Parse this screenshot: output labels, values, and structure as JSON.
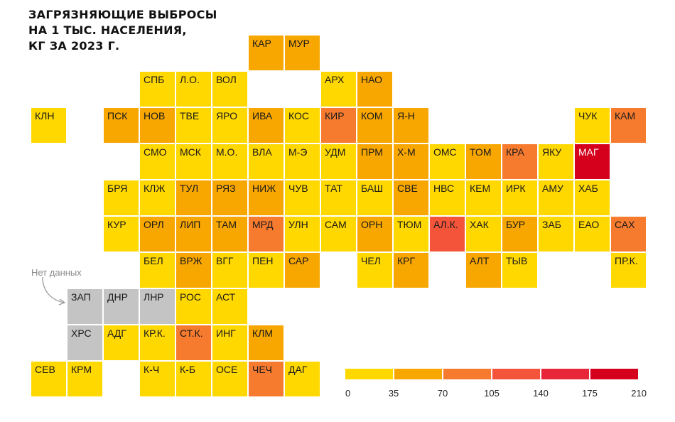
{
  "title": {
    "line1": "ЗАГРЯЗНЯЮЩИЕ ВЫБРОСЫ",
    "line2": "НА 1 ТЫС. НАСЕЛЕНИЯ,",
    "line3": "КГ ЗА 2023 Г."
  },
  "no_data_label": "Нет данных",
  "colors": {
    "bin1": "#ffd800",
    "bin2": "#f8a600",
    "bin3": "#f77b2f",
    "bin4": "#f4553a",
    "bin5": "#e8263a",
    "bin6": "#d5001c",
    "no_data": "#c4c4c4"
  },
  "legend": {
    "bins": [
      "bin1",
      "bin2",
      "bin3",
      "bin4",
      "bin5",
      "bin6"
    ],
    "ticks": [
      "0",
      "35",
      "70",
      "105",
      "140",
      "175",
      "210"
    ]
  },
  "regions": [
    {
      "label": "КАР",
      "col": 6,
      "row": 0,
      "color": "bin2"
    },
    {
      "label": "МУР",
      "col": 7,
      "row": 0,
      "color": "bin2"
    },
    {
      "label": "СПБ",
      "col": 3,
      "row": 1,
      "color": "bin1"
    },
    {
      "label": "Л.О.",
      "col": 4,
      "row": 1,
      "color": "bin1"
    },
    {
      "label": "ВОЛ",
      "col": 5,
      "row": 1,
      "color": "bin1"
    },
    {
      "label": "АРХ",
      "col": 8,
      "row": 1,
      "color": "bin1"
    },
    {
      "label": "НАО",
      "col": 9,
      "row": 1,
      "color": "bin2"
    },
    {
      "label": "КЛН",
      "col": 0,
      "row": 2,
      "color": "bin1"
    },
    {
      "label": "ПСК",
      "col": 2,
      "row": 2,
      "color": "bin2"
    },
    {
      "label": "НОВ",
      "col": 3,
      "row": 2,
      "color": "bin2"
    },
    {
      "label": "ТВЕ",
      "col": 4,
      "row": 2,
      "color": "bin1"
    },
    {
      "label": "ЯРО",
      "col": 5,
      "row": 2,
      "color": "bin1"
    },
    {
      "label": "ИВА",
      "col": 6,
      "row": 2,
      "color": "bin2"
    },
    {
      "label": "КОС",
      "col": 7,
      "row": 2,
      "color": "bin1"
    },
    {
      "label": "КИР",
      "col": 8,
      "row": 2,
      "color": "bin3"
    },
    {
      "label": "КОМ",
      "col": 9,
      "row": 2,
      "color": "bin2"
    },
    {
      "label": "Я-Н",
      "col": 10,
      "row": 2,
      "color": "bin2"
    },
    {
      "label": "ЧУК",
      "col": 15,
      "row": 2,
      "color": "bin1"
    },
    {
      "label": "КАМ",
      "col": 16,
      "row": 2,
      "color": "bin3"
    },
    {
      "label": "СМО",
      "col": 3,
      "row": 3,
      "color": "bin1"
    },
    {
      "label": "МСК",
      "col": 4,
      "row": 3,
      "color": "bin1"
    },
    {
      "label": "М.О.",
      "col": 5,
      "row": 3,
      "color": "bin1"
    },
    {
      "label": "ВЛА",
      "col": 6,
      "row": 3,
      "color": "bin1"
    },
    {
      "label": "М-Э",
      "col": 7,
      "row": 3,
      "color": "bin1"
    },
    {
      "label": "УДМ",
      "col": 8,
      "row": 3,
      "color": "bin1"
    },
    {
      "label": "ПРМ",
      "col": 9,
      "row": 3,
      "color": "bin2"
    },
    {
      "label": "Х-М",
      "col": 10,
      "row": 3,
      "color": "bin2"
    },
    {
      "label": "ОМС",
      "col": 11,
      "row": 3,
      "color": "bin1"
    },
    {
      "label": "ТОМ",
      "col": 12,
      "row": 3,
      "color": "bin2"
    },
    {
      "label": "КРА",
      "col": 13,
      "row": 3,
      "color": "bin3"
    },
    {
      "label": "ЯКУ",
      "col": 14,
      "row": 3,
      "color": "bin1"
    },
    {
      "label": "МАГ",
      "col": 15,
      "row": 3,
      "color": "bin6",
      "light": true
    },
    {
      "label": "БРЯ",
      "col": 2,
      "row": 4,
      "color": "bin1"
    },
    {
      "label": "КЛЖ",
      "col": 3,
      "row": 4,
      "color": "bin1"
    },
    {
      "label": "ТУЛ",
      "col": 4,
      "row": 4,
      "color": "bin2"
    },
    {
      "label": "РЯЗ",
      "col": 5,
      "row": 4,
      "color": "bin2"
    },
    {
      "label": "НИЖ",
      "col": 6,
      "row": 4,
      "color": "bin2"
    },
    {
      "label": "ЧУВ",
      "col": 7,
      "row": 4,
      "color": "bin1"
    },
    {
      "label": "ТАТ",
      "col": 8,
      "row": 4,
      "color": "bin1"
    },
    {
      "label": "БАШ",
      "col": 9,
      "row": 4,
      "color": "bin1"
    },
    {
      "label": "СВЕ",
      "col": 10,
      "row": 4,
      "color": "bin2"
    },
    {
      "label": "НВС",
      "col": 11,
      "row": 4,
      "color": "bin1"
    },
    {
      "label": "КЕМ",
      "col": 12,
      "row": 4,
      "color": "bin1"
    },
    {
      "label": "ИРК",
      "col": 13,
      "row": 4,
      "color": "bin1"
    },
    {
      "label": "АМУ",
      "col": 14,
      "row": 4,
      "color": "bin1"
    },
    {
      "label": "ХАБ",
      "col": 15,
      "row": 4,
      "color": "bin1"
    },
    {
      "label": "КУР",
      "col": 2,
      "row": 5,
      "color": "bin1"
    },
    {
      "label": "ОРЛ",
      "col": 3,
      "row": 5,
      "color": "bin2"
    },
    {
      "label": "ЛИП",
      "col": 4,
      "row": 5,
      "color": "bin2"
    },
    {
      "label": "ТАМ",
      "col": 5,
      "row": 5,
      "color": "bin2"
    },
    {
      "label": "МРД",
      "col": 6,
      "row": 5,
      "color": "bin3"
    },
    {
      "label": "УЛН",
      "col": 7,
      "row": 5,
      "color": "bin1"
    },
    {
      "label": "САМ",
      "col": 8,
      "row": 5,
      "color": "bin1"
    },
    {
      "label": "ОРН",
      "col": 9,
      "row": 5,
      "color": "bin2"
    },
    {
      "label": "ТЮМ",
      "col": 10,
      "row": 5,
      "color": "bin1"
    },
    {
      "label": "АЛ.К.",
      "col": 11,
      "row": 5,
      "color": "bin4"
    },
    {
      "label": "ХАК",
      "col": 12,
      "row": 5,
      "color": "bin1"
    },
    {
      "label": "БУР",
      "col": 13,
      "row": 5,
      "color": "bin2"
    },
    {
      "label": "ЗАБ",
      "col": 14,
      "row": 5,
      "color": "bin1"
    },
    {
      "label": "ЕАО",
      "col": 15,
      "row": 5,
      "color": "bin1"
    },
    {
      "label": "САХ",
      "col": 16,
      "row": 5,
      "color": "bin3"
    },
    {
      "label": "БЕЛ",
      "col": 3,
      "row": 6,
      "color": "bin1"
    },
    {
      "label": "ВРЖ",
      "col": 4,
      "row": 6,
      "color": "bin2"
    },
    {
      "label": "ВГГ",
      "col": 5,
      "row": 6,
      "color": "bin1"
    },
    {
      "label": "ПЕН",
      "col": 6,
      "row": 6,
      "color": "bin1"
    },
    {
      "label": "САР",
      "col": 7,
      "row": 6,
      "color": "bin2"
    },
    {
      "label": "ЧЕЛ",
      "col": 9,
      "row": 6,
      "color": "bin1"
    },
    {
      "label": "КРГ",
      "col": 10,
      "row": 6,
      "color": "bin2"
    },
    {
      "label": "АЛТ",
      "col": 12,
      "row": 6,
      "color": "bin2"
    },
    {
      "label": "ТЫВ",
      "col": 13,
      "row": 6,
      "color": "bin1"
    },
    {
      "label": "ПР.К.",
      "col": 16,
      "row": 6,
      "color": "bin1"
    },
    {
      "label": "ЗАП",
      "col": 1,
      "row": 7,
      "color": "no_data"
    },
    {
      "label": "ДНР",
      "col": 2,
      "row": 7,
      "color": "no_data"
    },
    {
      "label": "ЛНР",
      "col": 3,
      "row": 7,
      "color": "no_data"
    },
    {
      "label": "РОС",
      "col": 4,
      "row": 7,
      "color": "bin1"
    },
    {
      "label": "АСТ",
      "col": 5,
      "row": 7,
      "color": "bin1"
    },
    {
      "label": "ХРС",
      "col": 1,
      "row": 8,
      "color": "no_data"
    },
    {
      "label": "АДГ",
      "col": 2,
      "row": 8,
      "color": "bin1"
    },
    {
      "label": "КР.К.",
      "col": 3,
      "row": 8,
      "color": "bin1"
    },
    {
      "label": "СТ.К.",
      "col": 4,
      "row": 8,
      "color": "bin3"
    },
    {
      "label": "ИНГ",
      "col": 5,
      "row": 8,
      "color": "bin1"
    },
    {
      "label": "КЛМ",
      "col": 6,
      "row": 8,
      "color": "bin2"
    },
    {
      "label": "СЕВ",
      "col": 0,
      "row": 9,
      "color": "bin1"
    },
    {
      "label": "КРМ",
      "col": 1,
      "row": 9,
      "color": "bin1"
    },
    {
      "label": "К-Ч",
      "col": 3,
      "row": 9,
      "color": "bin1"
    },
    {
      "label": "К-Б",
      "col": 4,
      "row": 9,
      "color": "bin1"
    },
    {
      "label": "ОСЕ",
      "col": 5,
      "row": 9,
      "color": "bin1"
    },
    {
      "label": "ЧЕЧ",
      "col": 6,
      "row": 9,
      "color": "bin3"
    },
    {
      "label": "ДАГ",
      "col": 7,
      "row": 9,
      "color": "bin1"
    }
  ]
}
